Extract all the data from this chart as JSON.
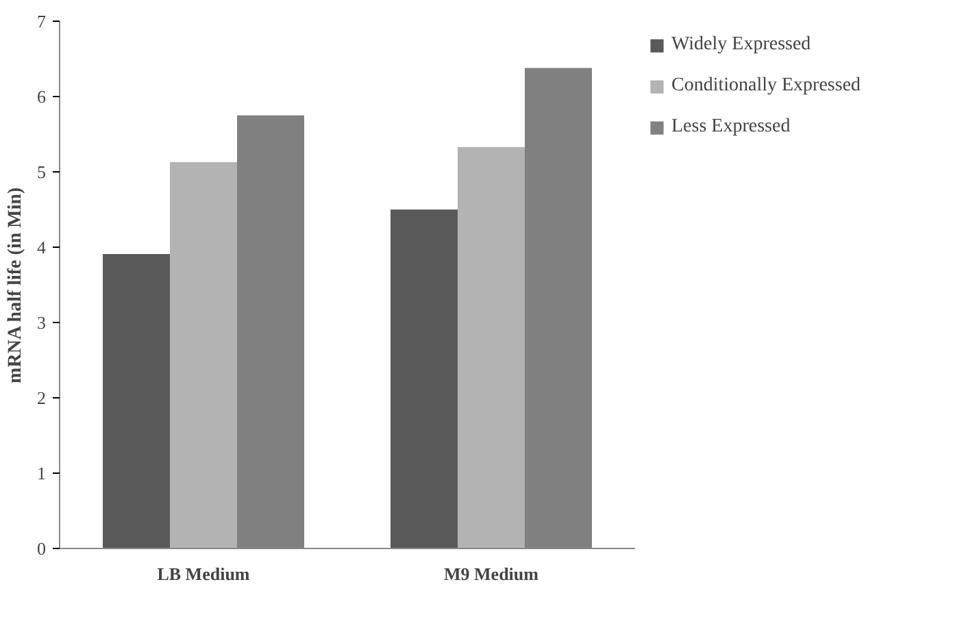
{
  "chart_data": {
    "type": "bar",
    "ylabel": "mRNA half life (in Min)",
    "categories": [
      "LB Medium",
      "M9 Medium"
    ],
    "series": [
      {
        "name": "Widely Expressed",
        "color": "#595959",
        "values": [
          3.91,
          4.5
        ]
      },
      {
        "name": "Conditionally Expressed",
        "color": "#b3b3b3",
        "values": [
          5.13,
          5.33
        ]
      },
      {
        "name": "Less Expressed",
        "color": "#808080",
        "values": [
          5.75,
          6.38
        ]
      }
    ],
    "ylim": [
      0,
      7
    ],
    "yticks": [
      0,
      1,
      2,
      3,
      4,
      5,
      6,
      7
    ],
    "grid": false,
    "legend": "right"
  }
}
